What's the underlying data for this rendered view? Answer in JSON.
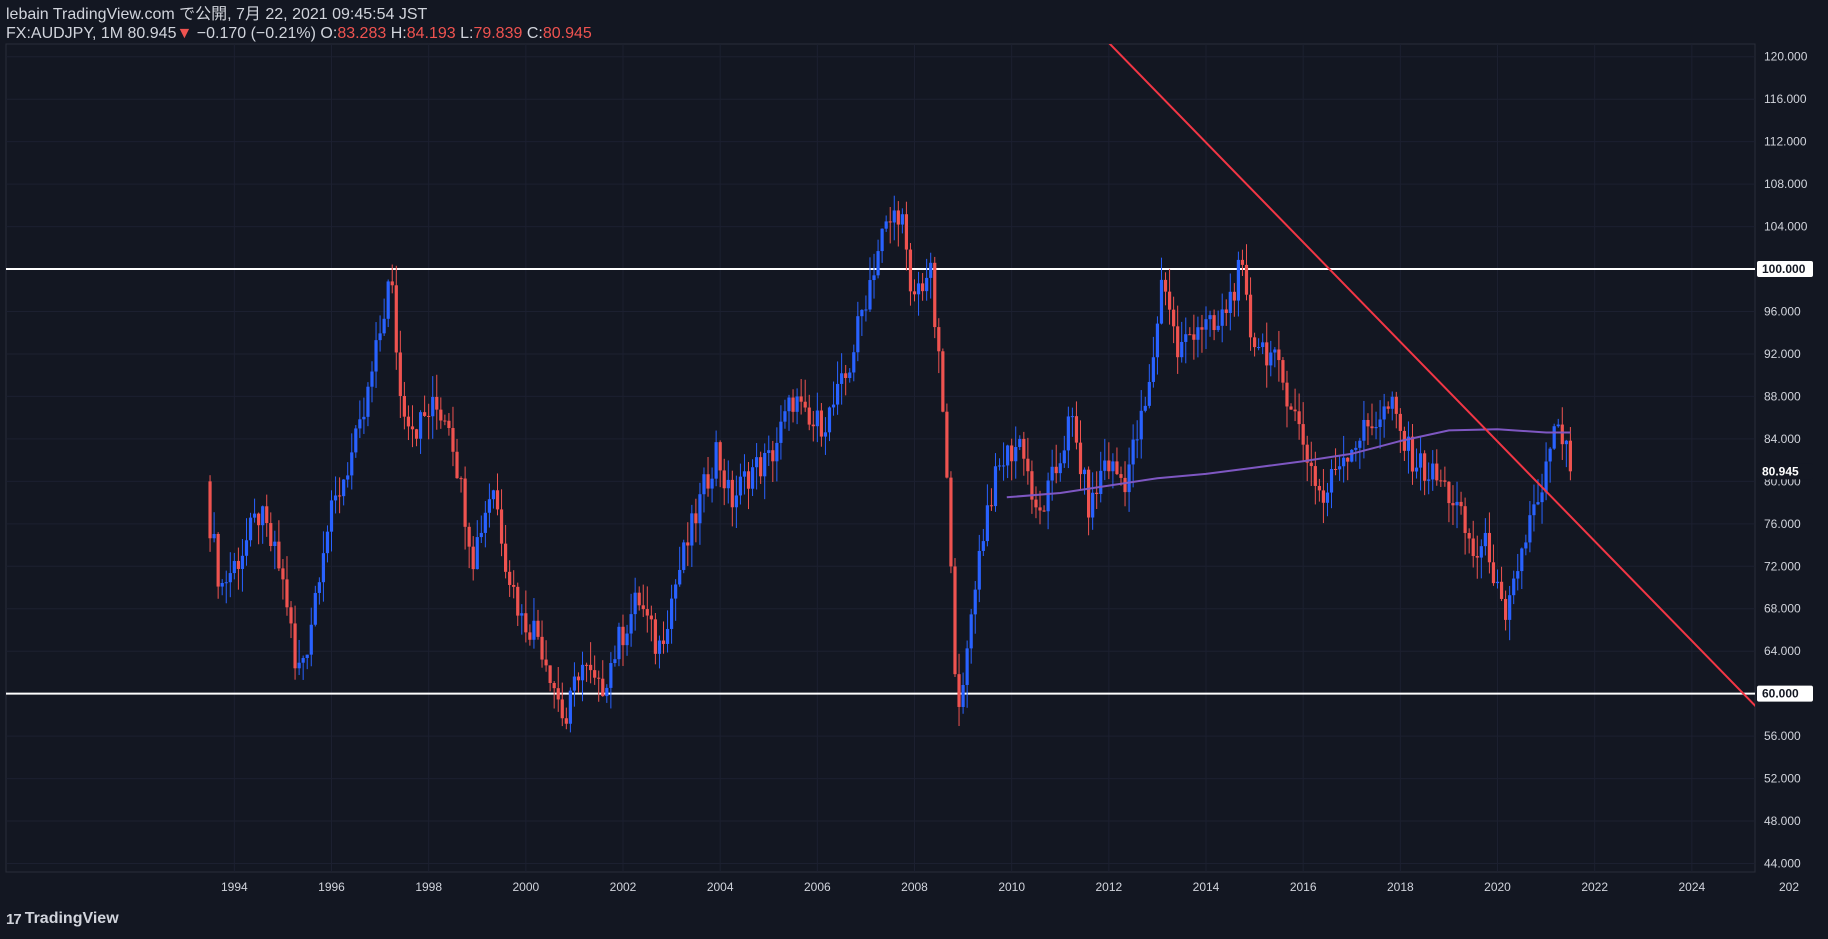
{
  "header": {
    "publisher_line": "lebain TradingView.com で公開, 7月 22, 2021 09:45:54 JST",
    "symbol": "FX:AUDJPY, 1M",
    "last": "80.945",
    "change_arrow": "▼",
    "change": "−0.170 (−0.21%)",
    "o_label": "O:",
    "o_value": "83.283",
    "h_label": "H:",
    "h_value": "84.193",
    "l_label": "L:",
    "l_value": "79.839",
    "c_label": "C:",
    "c_value": "80.945"
  },
  "footer": {
    "logo_text": "TradingView",
    "logo_mark": "17"
  },
  "colors": {
    "background": "#131722",
    "up": "#2962ff",
    "down": "#ef5350",
    "trendline": "#f23645",
    "moving_average": "#7e57c2",
    "horizontal_lines": "#ffffff",
    "grid": "#1c2030",
    "axis_text": "#d1d4dc"
  },
  "chart_data": {
    "type": "candlestick",
    "symbol": "AUDJPY",
    "interval": "1M",
    "x_axis": {
      "ticks": [
        "1994",
        "1996",
        "1998",
        "2000",
        "2002",
        "2004",
        "2006",
        "2008",
        "2010",
        "2012",
        "2014",
        "2016",
        "2018",
        "2020",
        "2022",
        "2024",
        "202"
      ],
      "range": [
        1989.3,
        2025.3
      ]
    },
    "y_axis": {
      "ticks": [
        "44.000",
        "48.000",
        "52.000",
        "56.000",
        "60.000",
        "64.000",
        "68.000",
        "72.000",
        "76.000",
        "80.000",
        "84.000",
        "88.000",
        "92.000",
        "96.000",
        "100.000",
        "104.000",
        "108.000",
        "112.000",
        "116.000",
        "120.000"
      ],
      "range": [
        43.2,
        121.2
      ]
    },
    "price_labels": [
      "100.000",
      "80.945",
      "60.000"
    ],
    "grid": true,
    "horizontal_lines": [
      100.0,
      60.0
    ],
    "trendline": {
      "points": [
        [
          2011.0,
          126.0
        ],
        [
          2025.7,
          57.0
        ]
      ]
    },
    "moving_average": [
      [
        2009.9,
        78.5
      ],
      [
        2011.0,
        78.9
      ],
      [
        2012.0,
        79.6
      ],
      [
        2013.0,
        80.3
      ],
      [
        2014.0,
        80.7
      ],
      [
        2015.0,
        81.3
      ],
      [
        2016.0,
        81.9
      ],
      [
        2017.0,
        82.6
      ],
      [
        2018.0,
        83.8
      ],
      [
        2019.0,
        84.8
      ],
      [
        2020.0,
        84.9
      ],
      [
        2021.0,
        84.6
      ],
      [
        2021.5,
        84.6
      ]
    ],
    "price_path": [
      [
        1993.5,
        78.5
      ],
      [
        1993.8,
        70.0
      ],
      [
        1994.2,
        73.0
      ],
      [
        1994.6,
        77.0
      ],
      [
        1995.0,
        72.0
      ],
      [
        1995.2,
        68.0
      ],
      [
        1995.35,
        61.5
      ],
      [
        1995.6,
        65.0
      ],
      [
        1995.9,
        74.0
      ],
      [
        1996.3,
        80.0
      ],
      [
        1996.7,
        85.0
      ],
      [
        1997.0,
        92.0
      ],
      [
        1997.3,
        99.5
      ],
      [
        1997.5,
        88.0
      ],
      [
        1997.8,
        85.0
      ],
      [
        1998.2,
        87.0
      ],
      [
        1998.5,
        86.0
      ],
      [
        1998.8,
        78.0
      ],
      [
        1999.0,
        73.0
      ],
      [
        1999.4,
        80.0
      ],
      [
        1999.7,
        72.0
      ],
      [
        2000.0,
        67.0
      ],
      [
        2000.3,
        66.0
      ],
      [
        2000.6,
        62.0
      ],
      [
        2000.9,
        57.0
      ],
      [
        2001.2,
        63.0
      ],
      [
        2001.6,
        60.0
      ],
      [
        2002.0,
        65.0
      ],
      [
        2002.4,
        69.0
      ],
      [
        2002.8,
        64.0
      ],
      [
        2003.2,
        71.0
      ],
      [
        2003.6,
        77.0
      ],
      [
        2004.0,
        83.0
      ],
      [
        2004.3,
        78.0
      ],
      [
        2004.7,
        81.0
      ],
      [
        2005.1,
        82.0
      ],
      [
        2005.6,
        88.0
      ],
      [
        2005.9,
        85.0
      ],
      [
        2006.3,
        86.0
      ],
      [
        2006.7,
        90.0
      ],
      [
        2007.0,
        96.0
      ],
      [
        2007.4,
        103.0
      ],
      [
        2007.8,
        106.0
      ],
      [
        2008.0,
        97.0
      ],
      [
        2008.4,
        100.0
      ],
      [
        2008.7,
        85.0
      ],
      [
        2008.9,
        64.0
      ],
      [
        2009.05,
        58.0
      ],
      [
        2009.3,
        70.0
      ],
      [
        2009.6,
        78.0
      ],
      [
        2009.9,
        82.0
      ],
      [
        2010.3,
        84.0
      ],
      [
        2010.6,
        76.0
      ],
      [
        2011.0,
        81.0
      ],
      [
        2011.3,
        86.0
      ],
      [
        2011.7,
        77.0
      ],
      [
        2012.0,
        82.0
      ],
      [
        2012.4,
        80.0
      ],
      [
        2012.9,
        88.0
      ],
      [
        2013.2,
        100.0
      ],
      [
        2013.5,
        92.0
      ],
      [
        2013.9,
        95.0
      ],
      [
        2014.3,
        94.0
      ],
      [
        2014.8,
        100.0
      ],
      [
        2015.0,
        94.0
      ],
      [
        2015.4,
        92.0
      ],
      [
        2015.8,
        88.0
      ],
      [
        2016.2,
        82.0
      ],
      [
        2016.5,
        78.0
      ],
      [
        2016.8,
        82.0
      ],
      [
        2017.2,
        84.0
      ],
      [
        2017.6,
        86.0
      ],
      [
        2017.9,
        87.0
      ],
      [
        2018.2,
        83.0
      ],
      [
        2018.6,
        81.0
      ],
      [
        2018.9,
        80.0
      ],
      [
        2019.2,
        78.0
      ],
      [
        2019.6,
        73.0
      ],
      [
        2019.9,
        74.0
      ],
      [
        2020.1,
        69.0
      ],
      [
        2020.25,
        66.0
      ],
      [
        2020.5,
        72.0
      ],
      [
        2020.8,
        77.0
      ],
      [
        2021.0,
        78.0
      ],
      [
        2021.2,
        84.5
      ],
      [
        2021.45,
        84.0
      ],
      [
        2021.55,
        80.945
      ]
    ]
  }
}
